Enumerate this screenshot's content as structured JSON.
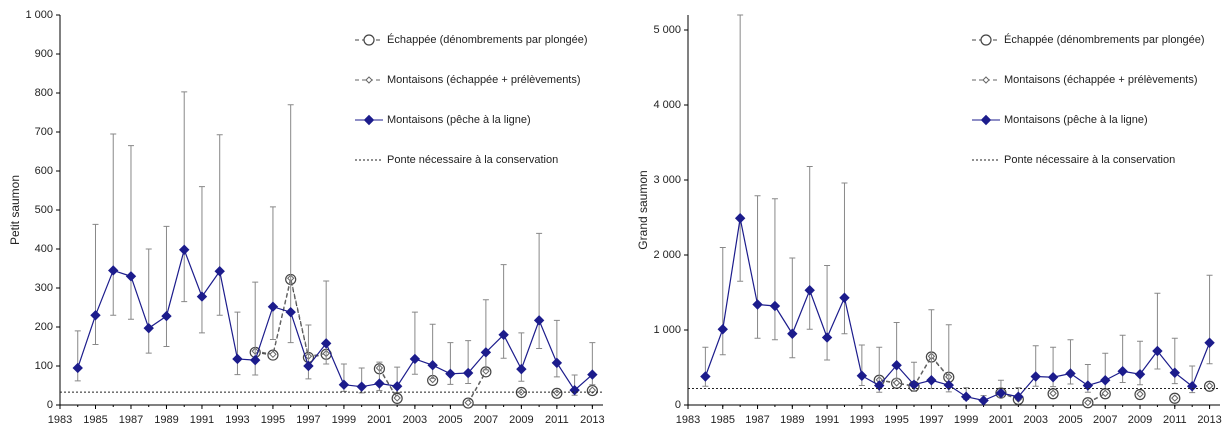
{
  "chart_data": [
    {
      "type": "line",
      "y_label": "Petit saumon",
      "legend": "top-right",
      "x": [
        1984,
        1985,
        1986,
        1987,
        1988,
        1989,
        1990,
        1991,
        1992,
        1993,
        1994,
        1995,
        1996,
        1997,
        1998,
        1999,
        2000,
        2001,
        2002,
        2003,
        2004,
        2005,
        2006,
        2007,
        2008,
        2009,
        2010,
        2011,
        2012,
        2013
      ],
      "xlim": [
        1983,
        2013.6
      ],
      "xticks": [
        1983,
        1985,
        1987,
        1989,
        1991,
        1993,
        1995,
        1997,
        1999,
        2001,
        2003,
        2005,
        2007,
        2009,
        2011,
        2013
      ],
      "ylim": [
        0,
        1000
      ],
      "yticks": [
        0,
        100,
        200,
        300,
        400,
        500,
        600,
        700,
        800,
        900,
        {
          "value": 1000,
          "label": "1 000"
        }
      ],
      "series": [
        {
          "name": "Échappée (dénombrements par plongée)",
          "color": "#444444",
          "marker": "circle",
          "dash": "dashed",
          "values": [
            null,
            null,
            null,
            null,
            null,
            null,
            null,
            null,
            null,
            null,
            135,
            128,
            322,
            122,
            130,
            null,
            null,
            93,
            17,
            null,
            63,
            null,
            5,
            85,
            null,
            32,
            null,
            30,
            null,
            37
          ]
        },
        {
          "name": "Montaisons (échappée + prélèvements)",
          "color": "#666666",
          "marker": "diamond-open",
          "dash": "dashed",
          "values": [
            null,
            null,
            null,
            null,
            null,
            null,
            null,
            null,
            null,
            null,
            138,
            130,
            325,
            125,
            132,
            null,
            null,
            95,
            18,
            null,
            65,
            null,
            6,
            87,
            null,
            33,
            null,
            31,
            null,
            38
          ]
        },
        {
          "name": "Montaisons (pêche à la ligne)",
          "color": "#1c1c8c",
          "marker": "diamond",
          "dash": "solid",
          "error_color": "#888888",
          "values": [
            95,
            230,
            345,
            330,
            197,
            228,
            398,
            278,
            343,
            118,
            115,
            252,
            238,
            100,
            158,
            52,
            47,
            55,
            48,
            118,
            102,
            80,
            82,
            135,
            180,
            92,
            217,
            108,
            38,
            78
          ],
          "lower": [
            62,
            155,
            230,
            220,
            133,
            150,
            265,
            185,
            230,
            78,
            77,
            168,
            160,
            67,
            105,
            35,
            31,
            37,
            32,
            79,
            68,
            53,
            55,
            90,
            120,
            61,
            145,
            72,
            25,
            52
          ],
          "upper": [
            190,
            463,
            695,
            665,
            400,
            458,
            803,
            560,
            693,
            238,
            315,
            508,
            770,
            205,
            318,
            105,
            95,
            110,
            97,
            238,
            207,
            160,
            165,
            270,
            360,
            185,
            440,
            217,
            77,
            160
          ]
        },
        {
          "name": "Ponte nécessaire à la conservation",
          "color": "#222222",
          "dash": "dotted",
          "hline": 33
        }
      ]
    },
    {
      "type": "line",
      "y_label": "Grand saumon",
      "legend": "top-right",
      "x": [
        1984,
        1985,
        1986,
        1987,
        1988,
        1989,
        1990,
        1991,
        1992,
        1993,
        1994,
        1995,
        1996,
        1997,
        1998,
        1999,
        2000,
        2001,
        2002,
        2003,
        2004,
        2005,
        2006,
        2007,
        2008,
        2009,
        2010,
        2011,
        2012,
        2013
      ],
      "xlim": [
        1983,
        2013.6
      ],
      "xticks": [
        1983,
        1985,
        1987,
        1989,
        1991,
        1993,
        1995,
        1997,
        1999,
        2001,
        2003,
        2005,
        2007,
        2009,
        2011,
        2013
      ],
      "ylim": [
        0,
        5200
      ],
      "yticks": [
        0,
        {
          "value": 1000,
          "label": "1 000"
        },
        {
          "value": 2000,
          "label": "2 000"
        },
        {
          "value": 3000,
          "label": "3 000"
        },
        {
          "value": 4000,
          "label": "4 000"
        },
        {
          "value": 5000,
          "label": "5 000"
        }
      ],
      "series": [
        {
          "name": "Échappée (dénombrements par plongée)",
          "color": "#444444",
          "marker": "circle",
          "dash": "dashed",
          "values": [
            null,
            null,
            null,
            null,
            null,
            null,
            null,
            null,
            null,
            null,
            330,
            290,
            250,
            640,
            370,
            null,
            null,
            160,
            75,
            null,
            150,
            null,
            30,
            150,
            null,
            140,
            null,
            90,
            null,
            250
          ]
        },
        {
          "name": "Montaisons (échappée + prélèvements)",
          "color": "#666666",
          "marker": "diamond-open",
          "dash": "dashed",
          "values": [
            null,
            null,
            null,
            null,
            null,
            null,
            null,
            null,
            null,
            null,
            335,
            295,
            255,
            650,
            375,
            null,
            null,
            165,
            78,
            null,
            155,
            null,
            32,
            155,
            null,
            145,
            null,
            92,
            null,
            255
          ]
        },
        {
          "name": "Montaisons (pêche à la ligne)",
          "color": "#1c1c8c",
          "marker": "diamond",
          "dash": "solid",
          "error_color": "#888888",
          "values": [
            380,
            1010,
            2490,
            1340,
            1320,
            950,
            1530,
            900,
            1430,
            390,
            260,
            530,
            270,
            330,
            265,
            110,
            60,
            160,
            110,
            380,
            370,
            420,
            260,
            330,
            450,
            410,
            720,
            430,
            250,
            830
          ],
          "lower": [
            250,
            670,
            1650,
            890,
            870,
            630,
            1010,
            600,
            950,
            260,
            170,
            350,
            180,
            220,
            175,
            73,
            40,
            105,
            73,
            250,
            245,
            280,
            170,
            220,
            300,
            270,
            480,
            285,
            165,
            550
          ],
          "upper": [
            770,
            2100,
            5200,
            2790,
            2750,
            1960,
            3180,
            1860,
            2960,
            800,
            770,
            1100,
            570,
            1270,
            1070,
            230,
            125,
            330,
            230,
            790,
            770,
            870,
            540,
            690,
            930,
            850,
            1490,
            890,
            520,
            1730
          ]
        },
        {
          "name": "Ponte nécessaire à la conservation",
          "color": "#222222",
          "dash": "dotted",
          "hline": 220
        }
      ]
    }
  ]
}
